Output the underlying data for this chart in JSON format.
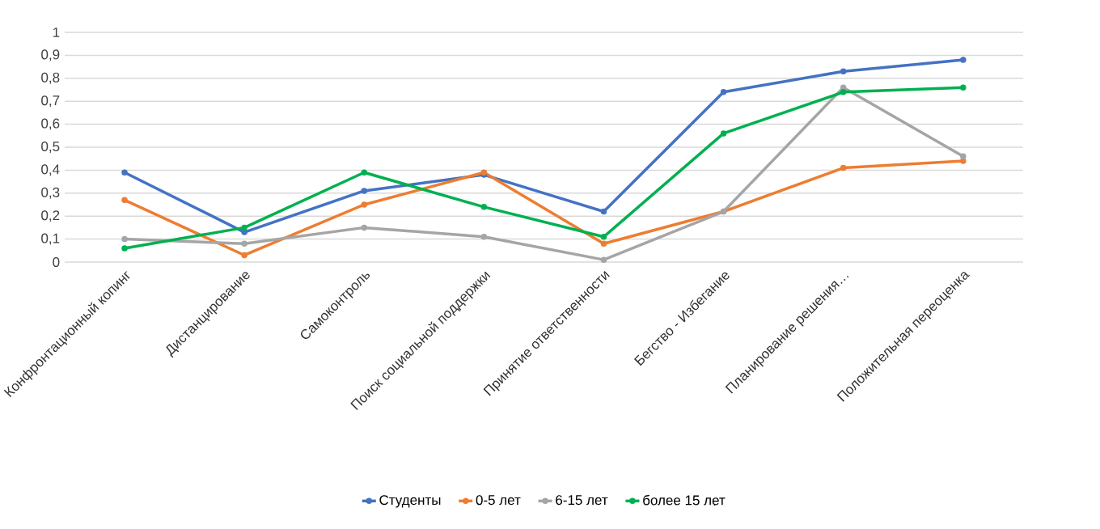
{
  "chart_data": {
    "type": "line",
    "categories": [
      "Конфронтационный копинг",
      "Дистанцирование",
      "Самоконтроль",
      "Поиск социальной поддержки",
      "Принятие ответственности",
      "Бегство - Избегание",
      "Планирование решения…",
      "Положительная переоценка"
    ],
    "series": [
      {
        "name": "Студенты",
        "color": "#4472c4",
        "values": [
          0.39,
          0.13,
          0.31,
          0.38,
          0.22,
          0.74,
          0.83,
          0.88
        ]
      },
      {
        "name": "0-5 лет",
        "color": "#ed7d31",
        "values": [
          0.27,
          0.03,
          0.25,
          0.39,
          0.08,
          0.22,
          0.41,
          0.44
        ]
      },
      {
        "name": "6-15 лет",
        "color": "#a5a5a5",
        "values": [
          0.1,
          0.08,
          0.15,
          0.11,
          0.01,
          0.22,
          0.76,
          0.46
        ]
      },
      {
        "name": "более 15 лет",
        "color": "#00b050",
        "values": [
          0.06,
          0.15,
          0.39,
          0.24,
          0.11,
          0.56,
          0.74,
          0.76
        ]
      }
    ],
    "ylim": [
      0,
      1
    ],
    "yticks": [
      0,
      {
        "value": 0.1,
        "label": "0,1"
      },
      {
        "value": 0.2,
        "label": "0,2"
      },
      {
        "value": 0.3,
        "label": "0,3"
      },
      {
        "value": 0.4,
        "label": "0,4"
      },
      {
        "value": 0.5,
        "label": "0,5"
      },
      {
        "value": 0.6,
        "label": "0,6"
      },
      {
        "value": 0.7,
        "label": "0,7"
      },
      {
        "value": 0.8,
        "label": "0,8"
      },
      {
        "value": 0.9,
        "label": "0,9"
      },
      1
    ],
    "grid": "y",
    "legend": "bottom",
    "marker": "circle",
    "line_style": "solid"
  }
}
